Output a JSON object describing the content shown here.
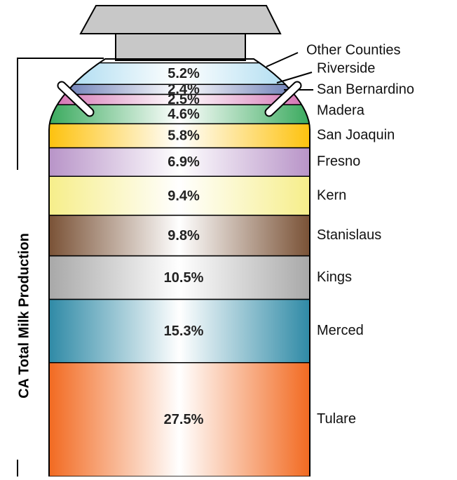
{
  "chart_data": {
    "type": "stacked_bar",
    "axis_label": "CA Total Milk Production",
    "categories": [
      "Tulare",
      "Merced",
      "Kings",
      "Stanislaus",
      "Kern",
      "Fresno",
      "San Joaquin",
      "Madera",
      "San Bernardino",
      "Riverside",
      "Other Counties"
    ],
    "values": [
      27.5,
      15.3,
      10.5,
      9.8,
      9.4,
      6.9,
      5.8,
      4.6,
      2.5,
      2.4,
      5.2
    ],
    "value_labels": [
      "27.5%",
      "15.3%",
      "10.5%",
      "9.8%",
      "9.4%",
      "6.9%",
      "5.8%",
      "4.6%",
      "2.5%",
      "2.4%",
      "5.2%"
    ],
    "colors": [
      "#f26a21",
      "#2f8aa6",
      "#a8a8a8",
      "#7a5236",
      "#f6ee8a",
      "#b894c8",
      "#fdc20e",
      "#3aaa5e",
      "#d36db0",
      "#5b6fae",
      "#9fd6ee"
    ]
  }
}
